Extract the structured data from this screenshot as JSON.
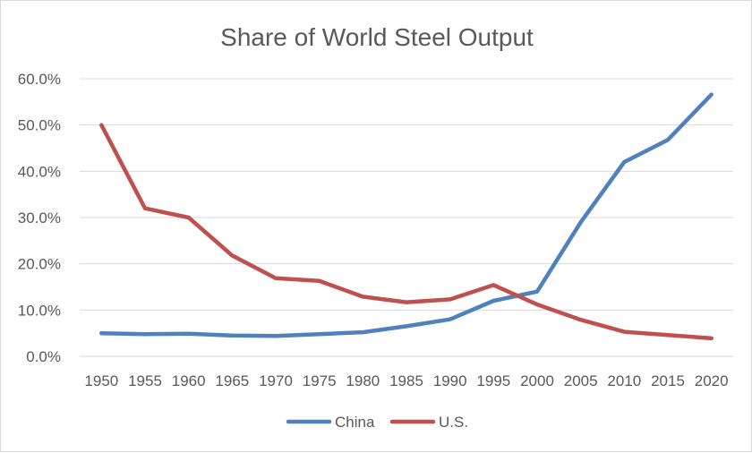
{
  "chart_data": {
    "type": "line",
    "title": "Share of World Steel Output",
    "xlabel": "",
    "ylabel": "",
    "categories": [
      "1950",
      "1955",
      "1960",
      "1965",
      "1970",
      "1975",
      "1980",
      "1985",
      "1990",
      "1995",
      "2000",
      "2005",
      "2010",
      "2015",
      "2020"
    ],
    "ylim": [
      0,
      60
    ],
    "yticks": [
      0,
      10,
      20,
      30,
      40,
      50,
      60
    ],
    "ytick_labels": [
      "0.0%",
      "10.0%",
      "20.0%",
      "30.0%",
      "40.0%",
      "50.0%",
      "60.0%"
    ],
    "grid": true,
    "legend_position": "bottom",
    "series": [
      {
        "name": "China",
        "color": "#4f81bd",
        "values": [
          5.0,
          4.8,
          4.9,
          4.5,
          4.4,
          4.8,
          5.2,
          6.5,
          8.0,
          12.0,
          14.0,
          29.0,
          42.0,
          46.8,
          56.6
        ]
      },
      {
        "name": "U.S.",
        "color": "#c0504d",
        "values": [
          50.0,
          32.0,
          30.0,
          21.8,
          16.9,
          16.3,
          12.9,
          11.7,
          12.3,
          15.4,
          11.2,
          7.9,
          5.3,
          4.6,
          3.9
        ]
      }
    ]
  }
}
